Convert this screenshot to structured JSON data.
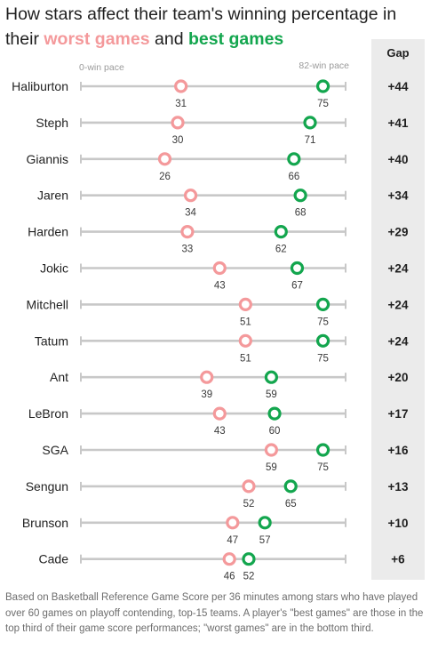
{
  "title": {
    "lead": "How stars affect their team's winning percentage in their",
    "worst": "worst games",
    "connector": "and",
    "best": "best games"
  },
  "colors": {
    "worst": "#f4999b",
    "best": "#13a64e",
    "track": "#c8c8c8"
  },
  "gap_header": "Gap",
  "footnote": "Based on Basketball Reference Game Score per 36 minutes among stars who have played over 60 games on playoff contending, top-15 teams. A player's \"best games\" are those in the top third of their game score performances; \"worst games\" are in the bottom third.",
  "chart_data": {
    "type": "scatter",
    "subtype": "dumbbell",
    "xlim": [
      0,
      82
    ],
    "axis_labels": {
      "min": "0-win pace",
      "max": "82-win pace"
    },
    "series": [
      {
        "name": "worst games",
        "key": "worst"
      },
      {
        "name": "best games",
        "key": "best"
      }
    ],
    "rows": [
      {
        "player": "Haliburton",
        "worst": 31,
        "best": 75,
        "gap": "+44"
      },
      {
        "player": "Steph",
        "worst": 30,
        "best": 71,
        "gap": "+41"
      },
      {
        "player": "Giannis",
        "worst": 26,
        "best": 66,
        "gap": "+40"
      },
      {
        "player": "Jaren",
        "worst": 34,
        "best": 68,
        "gap": "+34"
      },
      {
        "player": "Harden",
        "worst": 33,
        "best": 62,
        "gap": "+29"
      },
      {
        "player": "Jokic",
        "worst": 43,
        "best": 67,
        "gap": "+24"
      },
      {
        "player": "Mitchell",
        "worst": 51,
        "best": 75,
        "gap": "+24"
      },
      {
        "player": "Tatum",
        "worst": 51,
        "best": 75,
        "gap": "+24"
      },
      {
        "player": "Ant",
        "worst": 39,
        "best": 59,
        "gap": "+20"
      },
      {
        "player": "LeBron",
        "worst": 43,
        "best": 60,
        "gap": "+17"
      },
      {
        "player": "SGA",
        "worst": 59,
        "best": 75,
        "gap": "+16"
      },
      {
        "player": "Sengun",
        "worst": 52,
        "best": 65,
        "gap": "+13"
      },
      {
        "player": "Brunson",
        "worst": 47,
        "best": 57,
        "gap": "+10"
      },
      {
        "player": "Cade",
        "worst": 46,
        "best": 52,
        "gap": "+6"
      }
    ]
  }
}
